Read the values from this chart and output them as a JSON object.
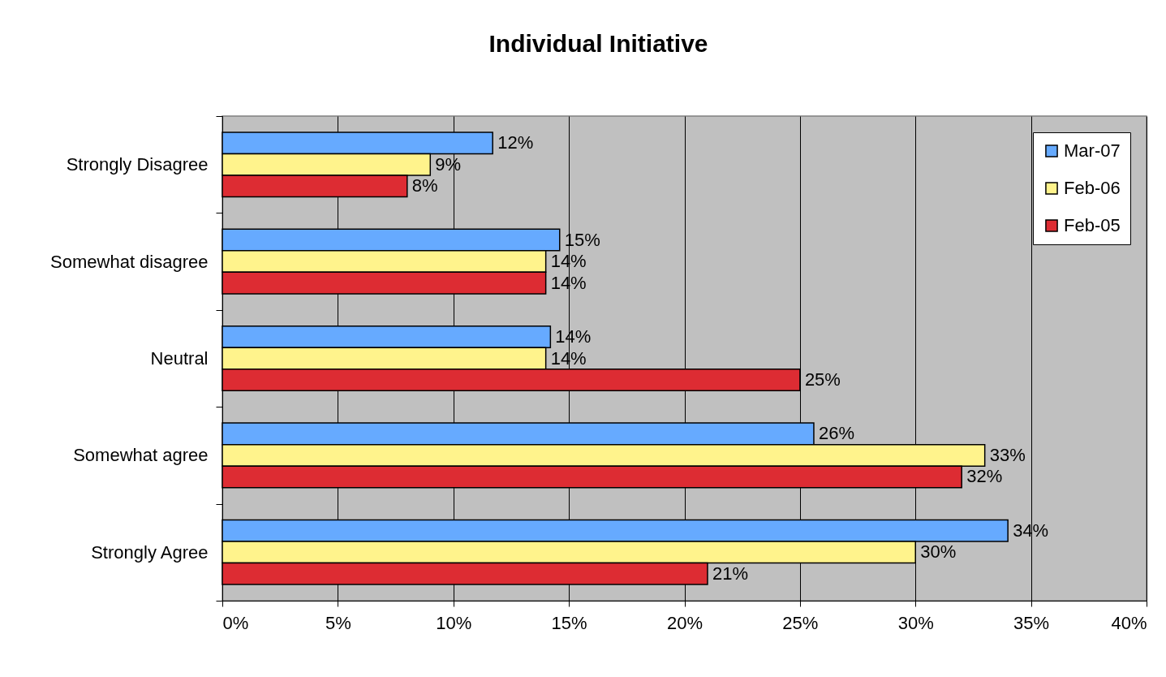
{
  "chart_data": {
    "type": "bar",
    "orientation": "horizontal",
    "title": "Individual Initiative",
    "categories": [
      "Strongly Disagree",
      "Somewhat disagree",
      "Neutral",
      "Somewhat agree",
      "Strongly Agree"
    ],
    "series": [
      {
        "name": "Mar-07",
        "color": "#66aaff",
        "values": [
          11.7,
          14.6,
          14.2,
          25.6,
          34.0
        ],
        "value_labels": [
          "12%",
          "15%",
          "14%",
          "26%",
          "34%"
        ]
      },
      {
        "name": "Feb-06",
        "color": "#fff38c",
        "values": [
          9,
          14,
          14,
          33,
          30
        ],
        "value_labels": [
          "9%",
          "14%",
          "14%",
          "33%",
          "30%"
        ]
      },
      {
        "name": "Feb-05",
        "color": "#dd2c33",
        "values": [
          8,
          14,
          25,
          32,
          21
        ],
        "value_labels": [
          "8%",
          "14%",
          "25%",
          "32%",
          "21%"
        ]
      }
    ],
    "xlim": [
      0,
      40
    ],
    "xticks": [
      {
        "value": 0,
        "label": "0%"
      },
      {
        "value": 5,
        "label": "5%"
      },
      {
        "value": 10,
        "label": "10%"
      },
      {
        "value": 15,
        "label": "15%"
      },
      {
        "value": 20,
        "label": "20%"
      },
      {
        "value": 25,
        "label": "25%"
      },
      {
        "value": 30,
        "label": "30%"
      },
      {
        "value": 35,
        "label": "35%"
      },
      {
        "value": 40,
        "label": "40%"
      }
    ],
    "grid": "x",
    "legend": "top right"
  }
}
